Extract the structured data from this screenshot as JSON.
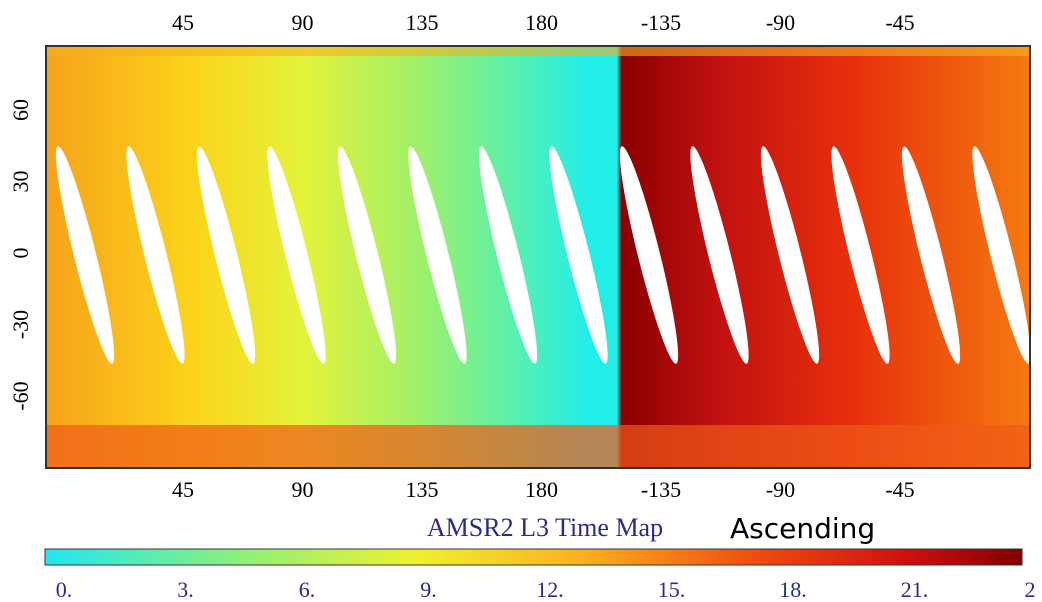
{
  "map": {
    "title": "AMSR2 L3 Time Map",
    "subtitle": "Ascending",
    "longitude_labels": [
      "45",
      "90",
      "135",
      "180",
      "-135",
      "-90",
      "-45"
    ],
    "latitude_labels": [
      "60",
      "30",
      "0",
      "-30",
      "-60"
    ],
    "colorbar_labels": [
      "0.",
      "3.",
      "6.",
      "9.",
      "12.",
      "15.",
      "18.",
      "21.",
      "2"
    ]
  }
}
